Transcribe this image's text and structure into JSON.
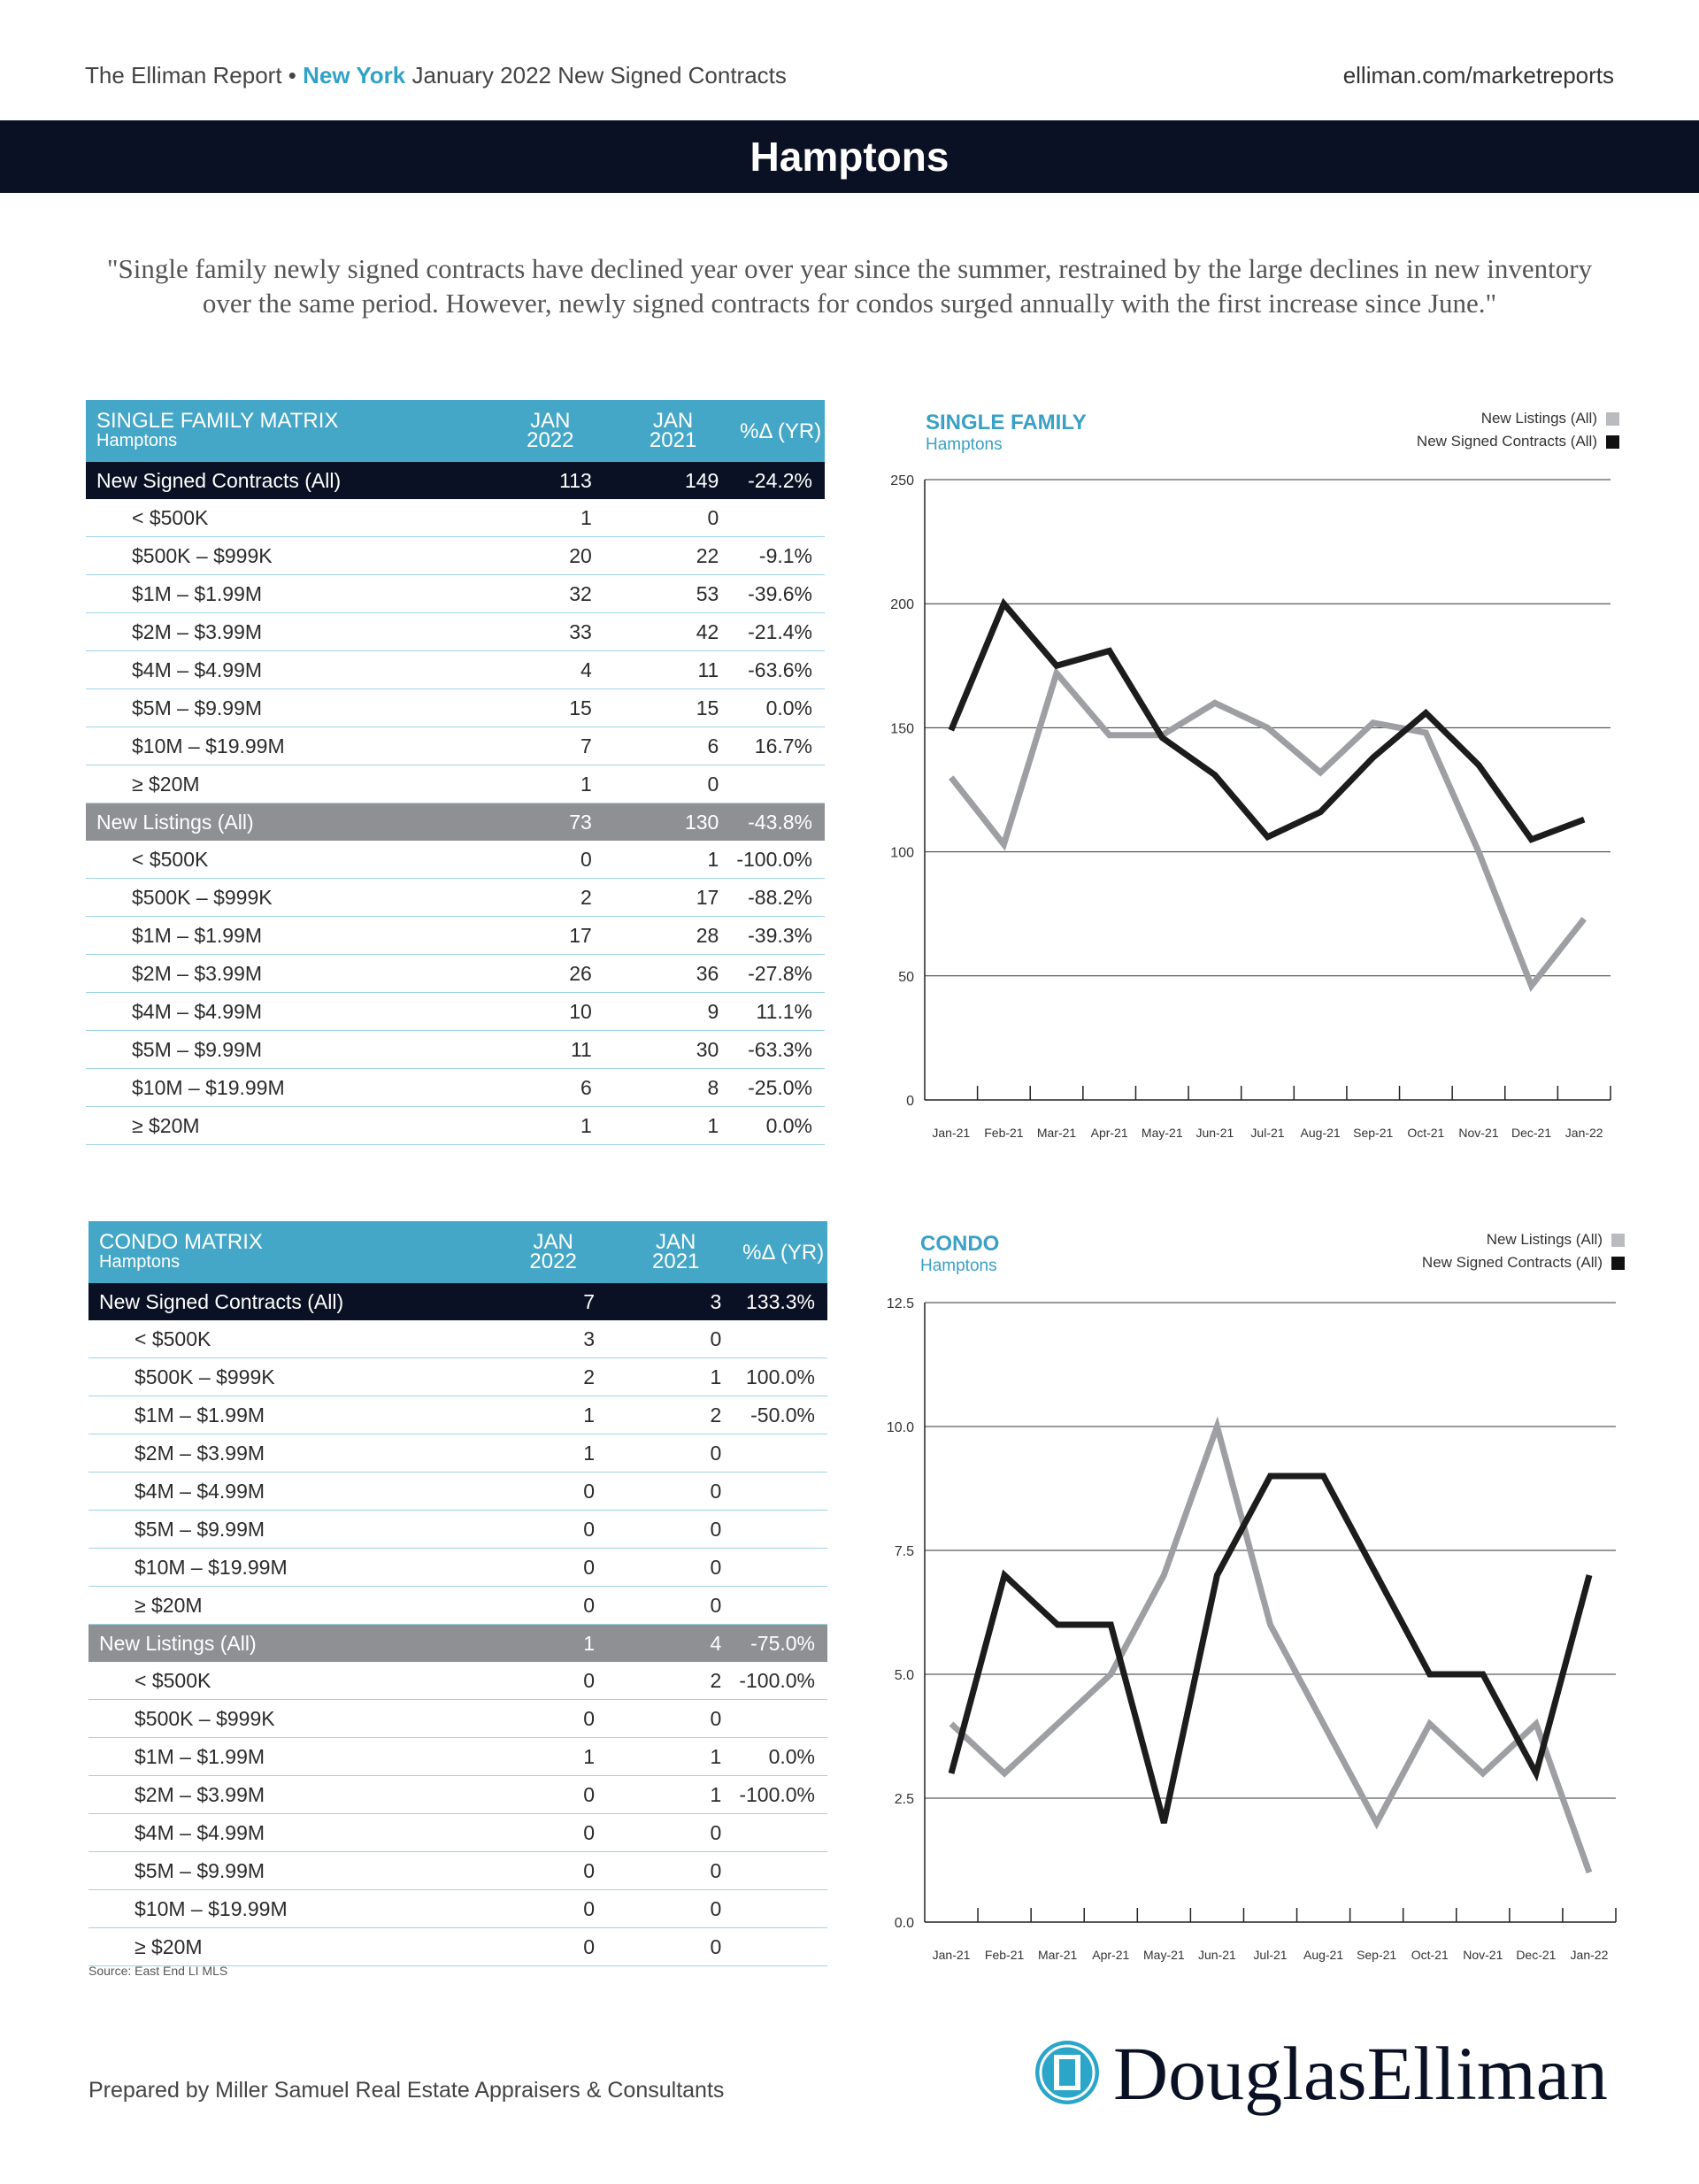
{
  "header": {
    "report": "The Elliman Report •",
    "city": "New York",
    "subtitle": "January 2022 New Signed Contracts",
    "url": "elliman.com/marketreports"
  },
  "banner": "Hamptons",
  "quote": "\"Single family newly signed contracts have declined year over year since the summer, restrained by the large declines in new inventory over the same period. However, newly signed contracts for condos surged annually with the first increase since June.\"",
  "single_family_table": {
    "title": "SINGLE FAMILY MATRIX",
    "subtitle": "Hamptons",
    "col1_line1": "JAN",
    "col1_line2": "2022",
    "col2_line1": "JAN",
    "col2_line2": "2021",
    "col3": "%Δ (YR)",
    "rows": [
      {
        "label": "New Signed Contracts (All)",
        "a": "113",
        "b": "149",
        "pct": "-24.2%",
        "type": "nsc"
      },
      {
        "label": "< $500K",
        "a": "1",
        "b": "0",
        "pct": "",
        "type": "sub"
      },
      {
        "label": "$500K – $999K",
        "a": "20",
        "b": "22",
        "pct": "-9.1%",
        "type": "sub"
      },
      {
        "label": "$1M – $1.99M",
        "a": "32",
        "b": "53",
        "pct": "-39.6%",
        "type": "sub"
      },
      {
        "label": "$2M – $3.99M",
        "a": "33",
        "b": "42",
        "pct": "-21.4%",
        "type": "sub"
      },
      {
        "label": "$4M – $4.99M",
        "a": "4",
        "b": "11",
        "pct": "-63.6%",
        "type": "sub"
      },
      {
        "label": "$5M – $9.99M",
        "a": "15",
        "b": "15",
        "pct": "0.0%",
        "type": "sub"
      },
      {
        "label": "$10M – $19.99M",
        "a": "7",
        "b": "6",
        "pct": "16.7%",
        "type": "sub"
      },
      {
        "label": "≥ $20M",
        "a": "1",
        "b": "0",
        "pct": "",
        "type": "sub"
      },
      {
        "label": "New Listings (All)",
        "a": "73",
        "b": "130",
        "pct": "-43.8%",
        "type": "nl"
      },
      {
        "label": "< $500K",
        "a": "0",
        "b": "1",
        "pct": "-100.0%",
        "type": "sub"
      },
      {
        "label": "$500K – $999K",
        "a": "2",
        "b": "17",
        "pct": "-88.2%",
        "type": "sub"
      },
      {
        "label": "$1M – $1.99M",
        "a": "17",
        "b": "28",
        "pct": "-39.3%",
        "type": "sub"
      },
      {
        "label": "$2M – $3.99M",
        "a": "26",
        "b": "36",
        "pct": "-27.8%",
        "type": "sub"
      },
      {
        "label": "$4M – $4.99M",
        "a": "10",
        "b": "9",
        "pct": "11.1%",
        "type": "sub"
      },
      {
        "label": "$5M – $9.99M",
        "a": "11",
        "b": "30",
        "pct": "-63.3%",
        "type": "sub"
      },
      {
        "label": "$10M – $19.99M",
        "a": "6",
        "b": "8",
        "pct": "-25.0%",
        "type": "sub"
      },
      {
        "label": "≥ $20M",
        "a": "1",
        "b": "1",
        "pct": "0.0%",
        "type": "sub"
      }
    ]
  },
  "condo_table": {
    "title": "CONDO MATRIX",
    "subtitle": "Hamptons",
    "col1_line1": "JAN",
    "col1_line2": "2022",
    "col2_line1": "JAN",
    "col2_line2": "2021",
    "col3": "%Δ (YR)",
    "rows": [
      {
        "label": "New Signed Contracts (All)",
        "a": "7",
        "b": "3",
        "pct": "133.3%",
        "type": "nsc"
      },
      {
        "label": "< $500K",
        "a": "3",
        "b": "0",
        "pct": "",
        "type": "sub"
      },
      {
        "label": "$500K – $999K",
        "a": "2",
        "b": "1",
        "pct": "100.0%",
        "type": "sub"
      },
      {
        "label": "$1M – $1.99M",
        "a": "1",
        "b": "2",
        "pct": "-50.0%",
        "type": "sub"
      },
      {
        "label": "$2M – $3.99M",
        "a": "1",
        "b": "0",
        "pct": "",
        "type": "sub"
      },
      {
        "label": "$4M – $4.99M",
        "a": "0",
        "b": "0",
        "pct": "",
        "type": "sub"
      },
      {
        "label": "$5M – $9.99M",
        "a": "0",
        "b": "0",
        "pct": "",
        "type": "sub"
      },
      {
        "label": "$10M – $19.99M",
        "a": "0",
        "b": "0",
        "pct": "",
        "type": "sub"
      },
      {
        "label": "≥ $20M",
        "a": "0",
        "b": "0",
        "pct": "",
        "type": "sub"
      },
      {
        "label": "New Listings (All)",
        "a": "1",
        "b": "4",
        "pct": "-75.0%",
        "type": "nl"
      },
      {
        "label": "< $500K",
        "a": "0",
        "b": "2",
        "pct": "-100.0%",
        "type": "sub"
      },
      {
        "label": "$500K – $999K",
        "a": "0",
        "b": "0",
        "pct": "",
        "type": "sub"
      },
      {
        "label": "$1M – $1.99M",
        "a": "1",
        "b": "1",
        "pct": "0.0%",
        "type": "sub"
      },
      {
        "label": "$2M – $3.99M",
        "a": "0",
        "b": "1",
        "pct": "-100.0%",
        "type": "sub"
      },
      {
        "label": "$4M – $4.99M",
        "a": "0",
        "b": "0",
        "pct": "",
        "type": "sub"
      },
      {
        "label": "$5M – $9.99M",
        "a": "0",
        "b": "0",
        "pct": "",
        "type": "sub"
      },
      {
        "label": "$10M – $19.99M",
        "a": "0",
        "b": "0",
        "pct": "",
        "type": "sub"
      },
      {
        "label": "≥ $20M",
        "a": "0",
        "b": "0",
        "pct": "",
        "type": "sub"
      }
    ]
  },
  "chart_data": [
    {
      "type": "line",
      "title": "SINGLE FAMILY",
      "subtitle": "Hamptons",
      "x": [
        "Jan-21",
        "Feb-21",
        "Mar-21",
        "Apr-21",
        "May-21",
        "Jun-21",
        "Jul-21",
        "Aug-21",
        "Sep-21",
        "Oct-21",
        "Nov-21",
        "Dec-21",
        "Jan-22"
      ],
      "ylim": [
        0,
        250
      ],
      "yticks": [
        "0",
        "50",
        "100",
        "150",
        "200",
        "250"
      ],
      "ytick_values": [
        0,
        50,
        100,
        150,
        200,
        250
      ],
      "series": [
        {
          "name": "New Listings (All)",
          "color": "#9d9fa2",
          "values": [
            130,
            103,
            172,
            147,
            147,
            160,
            150,
            132,
            152,
            148,
            100,
            46,
            73
          ]
        },
        {
          "name": "New Signed Contracts (All)",
          "color": "#1c1c1c",
          "values": [
            149,
            200,
            175,
            181,
            146,
            131,
            106,
            116,
            138,
            156,
            135,
            105,
            113
          ]
        }
      ],
      "legend_position": "top-right"
    },
    {
      "type": "line",
      "title": "CONDO",
      "subtitle": "Hamptons",
      "x": [
        "Jan-21",
        "Feb-21",
        "Mar-21",
        "Apr-21",
        "May-21",
        "Jun-21",
        "Jul-21",
        "Aug-21",
        "Sep-21",
        "Oct-21",
        "Nov-21",
        "Dec-21",
        "Jan-22"
      ],
      "ylim": [
        0,
        12.5
      ],
      "yticks": [
        "0.0",
        "2.5",
        "5.0",
        "7.5",
        "10.0",
        "12.5"
      ],
      "ytick_values": [
        0,
        2.5,
        5,
        7.5,
        10,
        12.5
      ],
      "series": [
        {
          "name": "New Listings (All)",
          "color": "#9d9fa2",
          "values": [
            4,
            3,
            4,
            5,
            7,
            10,
            6,
            4,
            2,
            4,
            3,
            4,
            1
          ]
        },
        {
          "name": "New Signed Contracts (All)",
          "color": "#1c1c1c",
          "values": [
            3,
            7,
            6,
            6,
            2,
            7,
            9,
            9,
            7,
            5,
            5,
            3,
            7
          ]
        }
      ],
      "legend_position": "top-right"
    }
  ],
  "source": "Source: East End LI MLS",
  "footer": "Prepared by Miller Samuel Real Estate Appraisers & Consultants",
  "logo_text": "DouglasElliman"
}
